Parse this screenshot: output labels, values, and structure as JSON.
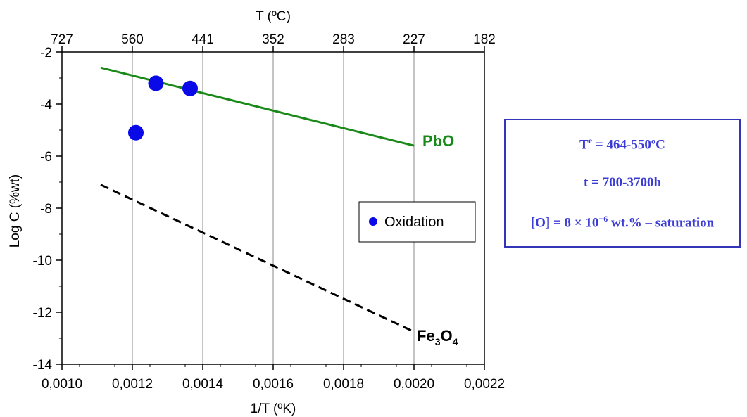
{
  "chart_data": {
    "type": "scatter",
    "xlabel": "1/T (ºK)",
    "ylabel": "Log C (%wt)",
    "top_axis_label": "T (ºC)",
    "xlim": [
      0.001,
      0.0022
    ],
    "ylim": [
      -14,
      -2
    ],
    "grid": "vertical lines at major x ticks",
    "x_ticks": [
      0.001,
      0.0012,
      0.0014,
      0.0016,
      0.0018,
      0.002,
      0.0022
    ],
    "x_tick_labels": [
      "0,0010",
      "0,0012",
      "0,0014",
      "0,0016",
      "0,0018",
      "0,0020",
      "0,0022"
    ],
    "y_ticks": [
      -14,
      -12,
      -10,
      -8,
      -6,
      -4,
      -2
    ],
    "y_tick_labels": [
      "-14",
      "-12",
      "-10",
      "-8",
      "-6",
      "-4",
      "-2"
    ],
    "top_ticks_x": [
      0.001,
      0.0012,
      0.0014,
      0.0016,
      0.0018,
      0.002,
      0.0022
    ],
    "top_tick_labels": [
      "727",
      "560",
      "441",
      "352",
      "283",
      "227",
      "182"
    ],
    "series": [
      {
        "name": "Oxidation",
        "kind": "scatter",
        "color": "#0a0ae8",
        "points": [
          {
            "x": 0.00121,
            "y": -5.1
          },
          {
            "x": 0.001267,
            "y": -3.2
          },
          {
            "x": 0.001364,
            "y": -3.4
          }
        ]
      },
      {
        "name": "PbO",
        "kind": "line",
        "color": "#198a19",
        "dash": "solid",
        "points": [
          {
            "x": 0.00111,
            "y": -2.6
          },
          {
            "x": 0.002,
            "y": -5.6
          }
        ]
      },
      {
        "name": "Fe3O4",
        "kind": "line",
        "color": "#000000",
        "dash": "dashed",
        "points": [
          {
            "x": 0.00111,
            "y": -7.1
          },
          {
            "x": 0.002,
            "y": -12.75
          }
        ]
      }
    ],
    "legend": {
      "position": "inside-right",
      "entries": [
        "Oxidation"
      ]
    },
    "annotations": {
      "pbo_label": "PbO",
      "fe3o4_main": "Fe",
      "fe3o4_sub1": "3",
      "fe3o4_mid": "O",
      "fe3o4_sub2": "4"
    }
  },
  "conditions": {
    "line1_main": "T",
    "line1_sup": "e",
    "line1_rest": " = 464-550ºC",
    "line2": "t = 700-3700h",
    "line3_pre": "[O] = 8 × 10",
    "line3_sup": "−6",
    "line3_post": " wt.% – saturation",
    "color": "#3b3bd6"
  }
}
